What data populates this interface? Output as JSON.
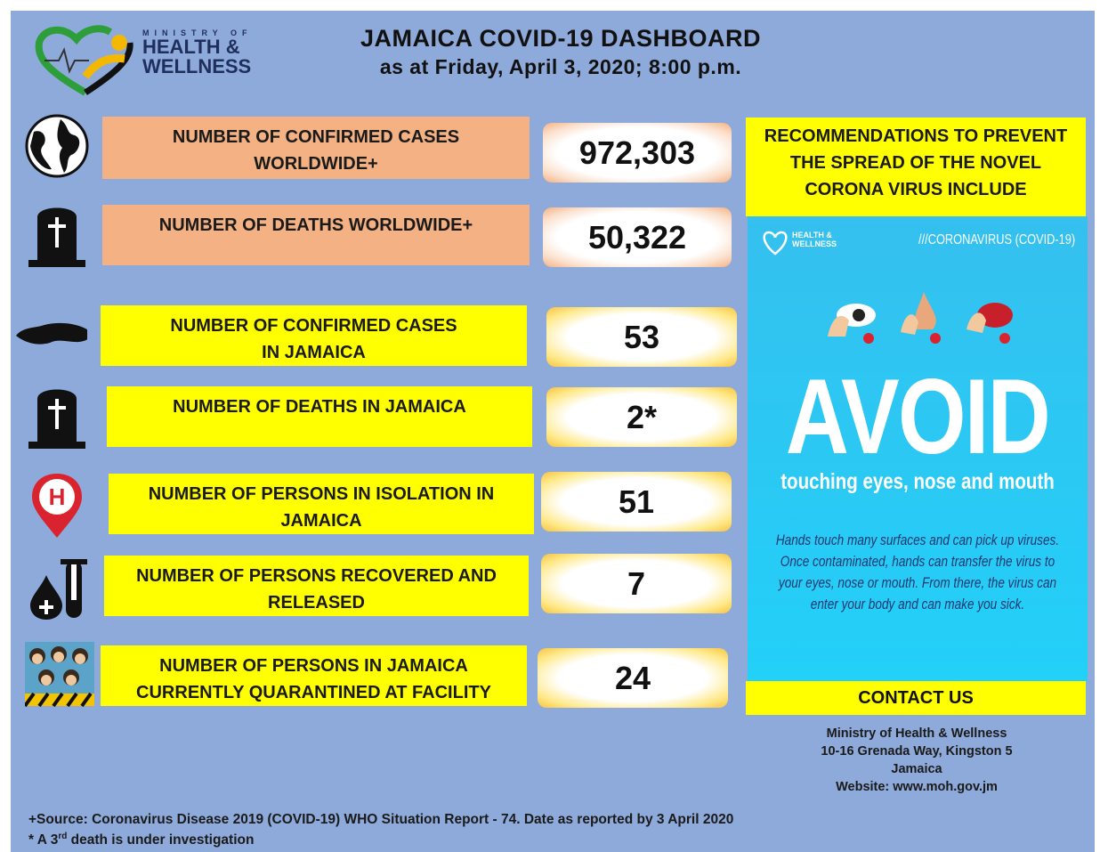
{
  "header": {
    "logo": {
      "top": "MINISTRY OF",
      "line1": "HEALTH &",
      "line2": "WELLNESS"
    },
    "title": "JAMAICA COVID-19 DASHBOARD",
    "subtitle": "as at Friday, April 3, 2020; 8:00 p.m."
  },
  "rows": [
    {
      "label": [
        "NUMBER OF CONFIRMED CASES",
        "WORLDWIDE+"
      ],
      "value": "972,303"
    },
    {
      "label": [
        "NUMBER OF DEATHS WORLDWIDE+"
      ],
      "value": "50,322"
    },
    {
      "label": [
        "NUMBER OF CONFIRMED CASES",
        "IN JAMAICA"
      ],
      "value": "53"
    },
    {
      "label": [
        "NUMBER OF DEATHS IN JAMAICA"
      ],
      "value": "2*"
    },
    {
      "label": [
        "NUMBER OF PERSONS IN ISOLATION IN",
        "JAMAICA"
      ],
      "value": "51"
    },
    {
      "label": [
        "NUMBER OF PERSONS RECOVERED AND",
        "RELEASED"
      ],
      "value": "7"
    },
    {
      "label": [
        "NUMBER OF PERSONS IN JAMAICA",
        "CURRENTLY QUARANTINED AT FACILITY"
      ],
      "value": "24"
    }
  ],
  "recommendations": {
    "lines": [
      "RECOMMENDATIONS TO PREVENT",
      "THE SPREAD OF THE NOVEL",
      "CORONA VIRUS INCLUDE"
    ]
  },
  "poster": {
    "logo": [
      "HEALTH &",
      "WELLNESS"
    ],
    "tag": "///CORONAVIRUS (COVID-19)",
    "headline": "AVOID",
    "subheadline": "touching eyes, nose and mouth",
    "body": [
      "Hands touch many surfaces and can pick up viruses.",
      "Once contaminated, hands can transfer the virus to",
      "your eyes, nose or mouth. From there, the virus can",
      "enter your body and can make you sick."
    ]
  },
  "contact": {
    "title": "CONTACT US",
    "lines": [
      "Ministry of Health & Wellness",
      "10-16 Grenada Way, Kingston 5",
      "Jamaica",
      "Website: www.moh.gov.jm"
    ]
  },
  "footer": {
    "source": "+Source: Coronavirus Disease 2019 (COVID-19) WHO Situation Report - 74. Date as reported by 3 April 2020",
    "note_prefix": "* A 3",
    "note_superscript": "rd",
    "note_suffix": " death is under investigation"
  }
}
